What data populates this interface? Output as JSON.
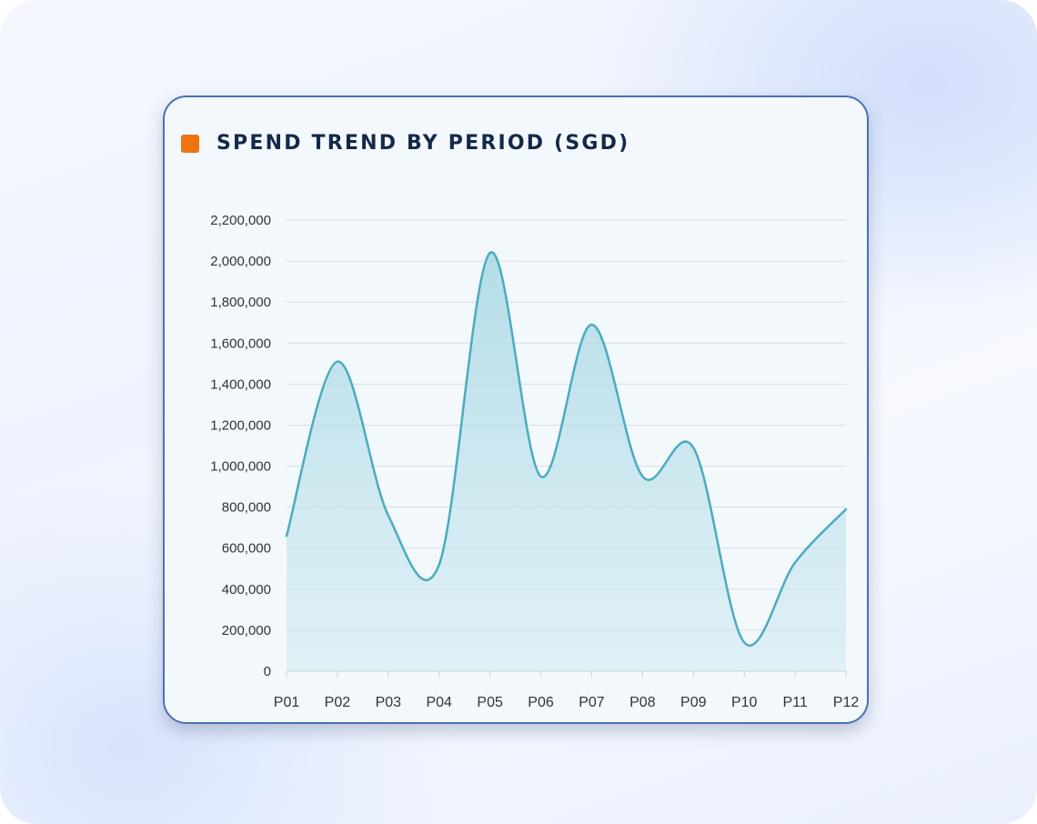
{
  "card": {
    "title": "SPEND TREND BY PERIOD (SGD)",
    "marker_color": "#ee7411"
  },
  "chart_data": {
    "type": "area",
    "title": "SPEND TREND BY PERIOD (SGD)",
    "xlabel": "",
    "ylabel": "",
    "categories": [
      "P01",
      "P02",
      "P03",
      "P04",
      "P05",
      "P06",
      "P07",
      "P08",
      "P09",
      "P10",
      "P11",
      "P12"
    ],
    "series": [
      {
        "values": [
          660000,
          1510000,
          760000,
          520000,
          2040000,
          950000,
          1690000,
          950000,
          1090000,
          140000,
          530000,
          790000
        ],
        "color": "#4aacbf"
      }
    ],
    "ylim": [
      0,
      2200000
    ],
    "yticks": [
      0,
      200000,
      400000,
      600000,
      800000,
      1000000,
      1200000,
      1400000,
      1600000,
      1800000,
      2000000,
      2200000
    ],
    "ytick_labels": [
      "0",
      "200,000",
      "400,000",
      "600,000",
      "800,000",
      "1,000,000",
      "1,200,000",
      "1,400,000",
      "1,600,000",
      "1,800,000",
      "2,000,000",
      "2,200,000"
    ],
    "grid": true,
    "legend": "none"
  }
}
